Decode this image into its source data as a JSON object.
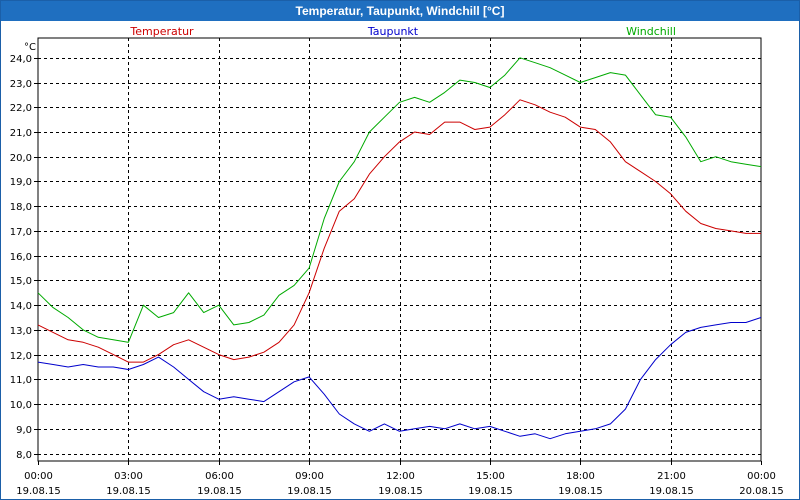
{
  "window": {
    "title": "Temperatur, Taupunkt, Windchill [°C]"
  },
  "chart_data": {
    "type": "line",
    "title": "Temperatur, Taupunkt, Windchill [°C]",
    "ylabel": "°C",
    "ylim": [
      7.7,
      24.8
    ],
    "xlim": [
      0,
      24
    ],
    "grid": true,
    "legend_position": "top",
    "y_ticks": [
      "8,0",
      "9,0",
      "10,0",
      "11,0",
      "12,0",
      "13,0",
      "14,0",
      "15,0",
      "16,0",
      "17,0",
      "18,0",
      "19,0",
      "20,0",
      "21,0",
      "22,0",
      "23,0",
      "24,0"
    ],
    "x_ticks": [
      {
        "time": "00:00",
        "date": "19.08.15"
      },
      {
        "time": "03:00",
        "date": "19.08.15"
      },
      {
        "time": "06:00",
        "date": "19.08.15"
      },
      {
        "time": "09:00",
        "date": "19.08.15"
      },
      {
        "time": "12:00",
        "date": "19.08.15"
      },
      {
        "time": "15:00",
        "date": "19.08.15"
      },
      {
        "time": "18:00",
        "date": "19.08.15"
      },
      {
        "time": "21:00",
        "date": "19.08.15"
      },
      {
        "time": "00:00",
        "date": "20.08.15"
      }
    ],
    "x": [
      0,
      0.5,
      1,
      1.5,
      2,
      2.5,
      3,
      3.5,
      4,
      4.5,
      5,
      5.5,
      6,
      6.5,
      7,
      7.5,
      8,
      8.5,
      9,
      9.5,
      10,
      10.5,
      11,
      11.5,
      12,
      12.5,
      13,
      13.5,
      14,
      14.5,
      15,
      15.5,
      16,
      16.5,
      17,
      17.5,
      18,
      18.5,
      19,
      19.5,
      20,
      20.5,
      21,
      21.5,
      22,
      22.5,
      23,
      23.5,
      24
    ],
    "series": [
      {
        "name": "Temperatur",
        "color": "#cc0000",
        "values": [
          13.2,
          12.9,
          12.6,
          12.5,
          12.3,
          12.0,
          11.7,
          11.7,
          12.0,
          12.4,
          12.6,
          12.3,
          12.0,
          11.8,
          11.9,
          12.1,
          12.5,
          13.2,
          14.5,
          16.3,
          17.8,
          18.3,
          19.3,
          20.0,
          20.6,
          21.0,
          20.9,
          21.4,
          21.4,
          21.1,
          21.2,
          21.7,
          22.3,
          22.1,
          21.8,
          21.6,
          21.2,
          21.1,
          20.6,
          19.8,
          19.4,
          19.0,
          18.5,
          17.8,
          17.3,
          17.1,
          17.0,
          16.9,
          16.9
        ]
      },
      {
        "name": "Taupunkt",
        "color": "#0000cc",
        "values": [
          11.7,
          11.6,
          11.5,
          11.6,
          11.5,
          11.5,
          11.4,
          11.6,
          11.9,
          11.5,
          11.0,
          10.5,
          10.2,
          10.3,
          10.2,
          10.1,
          10.5,
          10.9,
          11.1,
          10.4,
          9.6,
          9.2,
          8.9,
          9.2,
          8.9,
          9.0,
          9.1,
          9.0,
          9.2,
          9.0,
          9.1,
          8.9,
          8.7,
          8.8,
          8.6,
          8.8,
          8.9,
          9.0,
          9.2,
          9.8,
          11.0,
          11.8,
          12.4,
          12.9,
          13.1,
          13.2,
          13.3,
          13.3,
          13.5
        ]
      },
      {
        "name": "Windchill",
        "color": "#00aa00",
        "values": [
          14.5,
          13.9,
          13.5,
          13.0,
          12.7,
          12.6,
          12.5,
          14.0,
          13.5,
          13.7,
          14.5,
          13.7,
          14.0,
          13.2,
          13.3,
          13.6,
          14.4,
          14.8,
          15.5,
          17.5,
          19.0,
          19.8,
          21.0,
          21.6,
          22.2,
          22.4,
          22.2,
          22.6,
          23.1,
          23.0,
          22.8,
          23.3,
          24.0,
          23.8,
          23.6,
          23.3,
          23.0,
          23.2,
          23.4,
          23.3,
          22.5,
          21.7,
          21.6,
          20.8,
          19.8,
          20.0,
          19.8,
          19.7,
          19.6
        ]
      }
    ]
  }
}
